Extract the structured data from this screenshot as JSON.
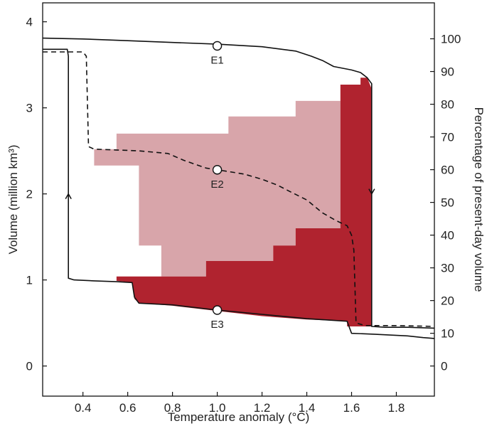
{
  "chart_data": {
    "type": "line",
    "xlabel": "Temperature anomaly (°C)",
    "ylabel": "Volume (million km³)",
    "ylabel_right": "Percentage of present-day volume",
    "xlim": [
      0.22,
      1.97
    ],
    "ylim": [
      -0.35,
      4.22
    ],
    "x_ticks": [
      0.4,
      0.6,
      0.8,
      1.0,
      1.2,
      1.4,
      1.6,
      1.8
    ],
    "x_tick_labels": [
      "0.4",
      "0.6",
      "0.8",
      "1.0",
      "1.2",
      "1.4",
      "1.6",
      "1.8"
    ],
    "y_ticks": [
      0,
      1,
      2,
      3,
      4
    ],
    "y_tick_labels": [
      "0",
      "1",
      "2",
      "3",
      "4"
    ],
    "y2_ticks": [
      0,
      10,
      20,
      30,
      40,
      50,
      60,
      70,
      80,
      90,
      100
    ],
    "y2_tick_labels": [
      "0",
      "10",
      "20",
      "30",
      "40",
      "50",
      "60",
      "70",
      "80",
      "90",
      "100"
    ],
    "y2_per_unit": 26.3,
    "colors": {
      "light_region": "#d8a5aa",
      "dark_region": "#b0232f",
      "line": "#111111"
    },
    "light_region": [
      [
        0.55,
        2.52
      ],
      [
        0.55,
        2.7
      ],
      [
        1.05,
        2.7
      ],
      [
        1.05,
        2.9
      ],
      [
        1.35,
        2.9
      ],
      [
        1.35,
        3.08
      ],
      [
        1.55,
        3.08
      ],
      [
        1.55,
        1.6
      ],
      [
        1.35,
        1.6
      ],
      [
        1.35,
        1.4
      ],
      [
        1.25,
        1.4
      ],
      [
        1.25,
        1.22
      ],
      [
        0.95,
        1.22
      ],
      [
        0.95,
        1.04
      ],
      [
        0.75,
        1.04
      ],
      [
        0.75,
        1.4
      ],
      [
        0.65,
        1.4
      ],
      [
        0.65,
        2.33
      ],
      [
        0.45,
        2.33
      ],
      [
        0.45,
        2.52
      ]
    ],
    "dark_region": [
      [
        1.57,
        3.27
      ],
      [
        1.64,
        3.27
      ],
      [
        1.64,
        3.35
      ],
      [
        1.67,
        3.35
      ],
      [
        1.69,
        3.22
      ],
      [
        1.69,
        0.46
      ],
      [
        1.58,
        0.46
      ],
      [
        1.58,
        0.52
      ],
      [
        1.4,
        0.54
      ],
      [
        1.2,
        0.58
      ],
      [
        1.0,
        0.64
      ],
      [
        0.8,
        0.7
      ],
      [
        0.65,
        0.73
      ],
      [
        0.63,
        0.78
      ],
      [
        0.62,
        0.97
      ],
      [
        0.55,
        0.99
      ],
      [
        0.55,
        1.04
      ],
      [
        0.95,
        1.04
      ],
      [
        0.95,
        1.22
      ],
      [
        1.25,
        1.22
      ],
      [
        1.25,
        1.4
      ],
      [
        1.35,
        1.4
      ],
      [
        1.35,
        1.6
      ],
      [
        1.55,
        1.6
      ],
      [
        1.55,
        3.27
      ]
    ],
    "series": [
      {
        "style": "solid",
        "points": [
          [
            0.22,
            3.81
          ],
          [
            0.4,
            3.8
          ],
          [
            0.6,
            3.78
          ],
          [
            0.8,
            3.76
          ],
          [
            1.0,
            3.74
          ],
          [
            1.2,
            3.71
          ],
          [
            1.35,
            3.66
          ],
          [
            1.42,
            3.6
          ],
          [
            1.47,
            3.55
          ],
          [
            1.52,
            3.48
          ],
          [
            1.6,
            3.44
          ],
          [
            1.64,
            3.41
          ],
          [
            1.67,
            3.35
          ],
          [
            1.69,
            3.28
          ],
          [
            1.69,
            0.46
          ],
          [
            1.75,
            0.45
          ],
          [
            1.85,
            0.45
          ],
          [
            1.97,
            0.44
          ]
        ]
      },
      {
        "style": "solid",
        "points": [
          [
            0.22,
            3.68
          ],
          [
            0.33,
            3.68
          ],
          [
            0.335,
            3.6
          ],
          [
            0.335,
            1.02
          ],
          [
            0.36,
            1.0
          ],
          [
            0.45,
            0.99
          ],
          [
            0.55,
            0.98
          ],
          [
            0.62,
            0.97
          ],
          [
            0.63,
            0.8
          ],
          [
            0.65,
            0.73
          ],
          [
            0.8,
            0.71
          ],
          [
            1.0,
            0.65
          ],
          [
            1.2,
            0.6
          ],
          [
            1.4,
            0.55
          ],
          [
            1.58,
            0.52
          ],
          [
            1.6,
            0.38
          ],
          [
            1.7,
            0.37
          ],
          [
            1.85,
            0.35
          ],
          [
            1.92,
            0.33
          ],
          [
            1.97,
            0.32
          ]
        ]
      },
      {
        "style": "dashed",
        "points": [
          [
            0.22,
            3.65
          ],
          [
            0.4,
            3.65
          ],
          [
            0.415,
            3.6
          ],
          [
            0.425,
            2.55
          ],
          [
            0.45,
            2.52
          ],
          [
            0.55,
            2.51
          ],
          [
            0.65,
            2.5
          ],
          [
            0.78,
            2.47
          ],
          [
            0.85,
            2.39
          ],
          [
            0.95,
            2.3
          ],
          [
            1.05,
            2.26
          ],
          [
            1.12,
            2.23
          ],
          [
            1.2,
            2.17
          ],
          [
            1.27,
            2.1
          ],
          [
            1.33,
            2.02
          ],
          [
            1.4,
            1.93
          ],
          [
            1.47,
            1.78
          ],
          [
            1.53,
            1.69
          ],
          [
            1.58,
            1.63
          ],
          [
            1.6,
            1.52
          ],
          [
            1.61,
            1.35
          ],
          [
            1.62,
            0.5
          ],
          [
            1.66,
            0.47
          ],
          [
            1.8,
            0.47
          ],
          [
            1.97,
            0.46
          ]
        ]
      }
    ],
    "arrows": [
      {
        "x": 0.335,
        "y": 2.0,
        "direction": "up"
      },
      {
        "x": 1.69,
        "y": 2.0,
        "direction": "down"
      }
    ],
    "markers": [
      {
        "label": "E1",
        "x": 1.0,
        "y": 3.72,
        "label_position": "below"
      },
      {
        "label": "E2",
        "x": 1.0,
        "y": 2.28,
        "label_position": "below"
      },
      {
        "label": "E3",
        "x": 1.0,
        "y": 0.65,
        "label_position": "below"
      }
    ]
  }
}
